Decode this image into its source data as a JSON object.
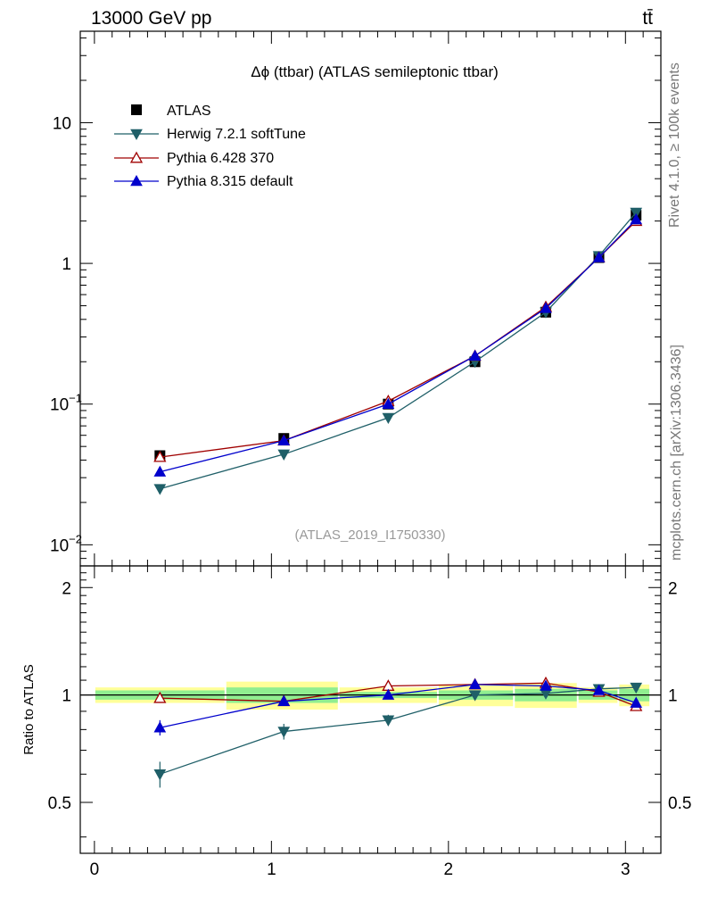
{
  "header": {
    "energy_label": "13000 GeV pp",
    "process_label": "tt̄"
  },
  "side": {
    "rivet_label": "Rivet 4.1.0, ≥ 100k events",
    "mcplots_label": "mcplots.cern.ch [arXiv:1306.3436]"
  },
  "chart_data": {
    "type": "line",
    "title": "Δϕ (ttbar) (ATLAS semileptonic ttbar)",
    "analysis_id": "(ATLAS_2019_I1750330)",
    "xlim": [
      -0.08,
      3.2
    ],
    "main_ylim_log10": [
      -2.15,
      1.65
    ],
    "ratio_ylim": [
      0.36,
      2.3
    ],
    "xlabel": "",
    "ratio_ylabel": "Ratio to ATLAS",
    "x_ticks": [
      "0",
      "1",
      "2",
      "3"
    ],
    "main_y_ticks": [
      {
        "exp": -2,
        "base": "10",
        "sup": "−2"
      },
      {
        "exp": -1,
        "base": "10",
        "sup": "−1"
      },
      {
        "exp": 0,
        "base": "1",
        "sup": ""
      },
      {
        "exp": 1,
        "base": "10",
        "sup": ""
      }
    ],
    "ratio_y_ticks": [
      "0.5",
      "1",
      "2"
    ],
    "ratio_y_values": [
      0.5,
      1,
      2
    ],
    "x": [
      0.37,
      1.07,
      1.66,
      2.15,
      2.55,
      2.85,
      3.06
    ],
    "bin_edges": [
      0.0,
      0.74,
      1.38,
      1.94,
      2.37,
      2.73,
      2.96,
      3.14
    ],
    "data": {
      "name": "ATLAS",
      "values": [
        0.043,
        0.057,
        0.1,
        0.2,
        0.45,
        1.1,
        2.2
      ],
      "stat_band": [
        0.03,
        0.05,
        0.02,
        0.03,
        0.04,
        0.03,
        0.04
      ],
      "total_band": [
        0.05,
        0.09,
        0.05,
        0.07,
        0.08,
        0.05,
        0.07
      ]
    },
    "series": [
      {
        "name": "Herwig 7.2.1 softTune",
        "color": "#1f5f68",
        "marker": "triangle-down-filled",
        "values": [
          0.025,
          0.044,
          0.08,
          0.2,
          0.45,
          1.13,
          2.3
        ],
        "ratio": [
          0.6,
          0.79,
          0.85,
          1.0,
          1.01,
          1.04,
          1.05
        ],
        "ratio_err": [
          0.05,
          0.04,
          0.03,
          0.03,
          0.02,
          0.02,
          0.02
        ]
      },
      {
        "name": "Pythia 6.428 370",
        "color": "#a00000",
        "marker": "triangle-up-open",
        "values": [
          0.042,
          0.055,
          0.105,
          0.22,
          0.49,
          1.1,
          2.0
        ],
        "ratio": [
          0.98,
          0.96,
          1.06,
          1.07,
          1.08,
          1.02,
          0.93
        ],
        "ratio_err": [
          0.03,
          0.02,
          0.02,
          0.02,
          0.02,
          0.01,
          0.01
        ]
      },
      {
        "name": "Pythia 8.315 default",
        "color": "#0000cc",
        "marker": "triangle-up-filled",
        "values": [
          0.033,
          0.055,
          0.1,
          0.22,
          0.48,
          1.1,
          2.05
        ],
        "ratio": [
          0.81,
          0.96,
          1.0,
          1.07,
          1.06,
          1.03,
          0.95
        ],
        "ratio_err": [
          0.04,
          0.02,
          0.02,
          0.02,
          0.02,
          0.01,
          0.01
        ]
      }
    ],
    "legend_position": "top-left",
    "colors": {
      "data": "#000000",
      "stat_band": "#90ee90",
      "total_band": "#ffff99"
    }
  }
}
